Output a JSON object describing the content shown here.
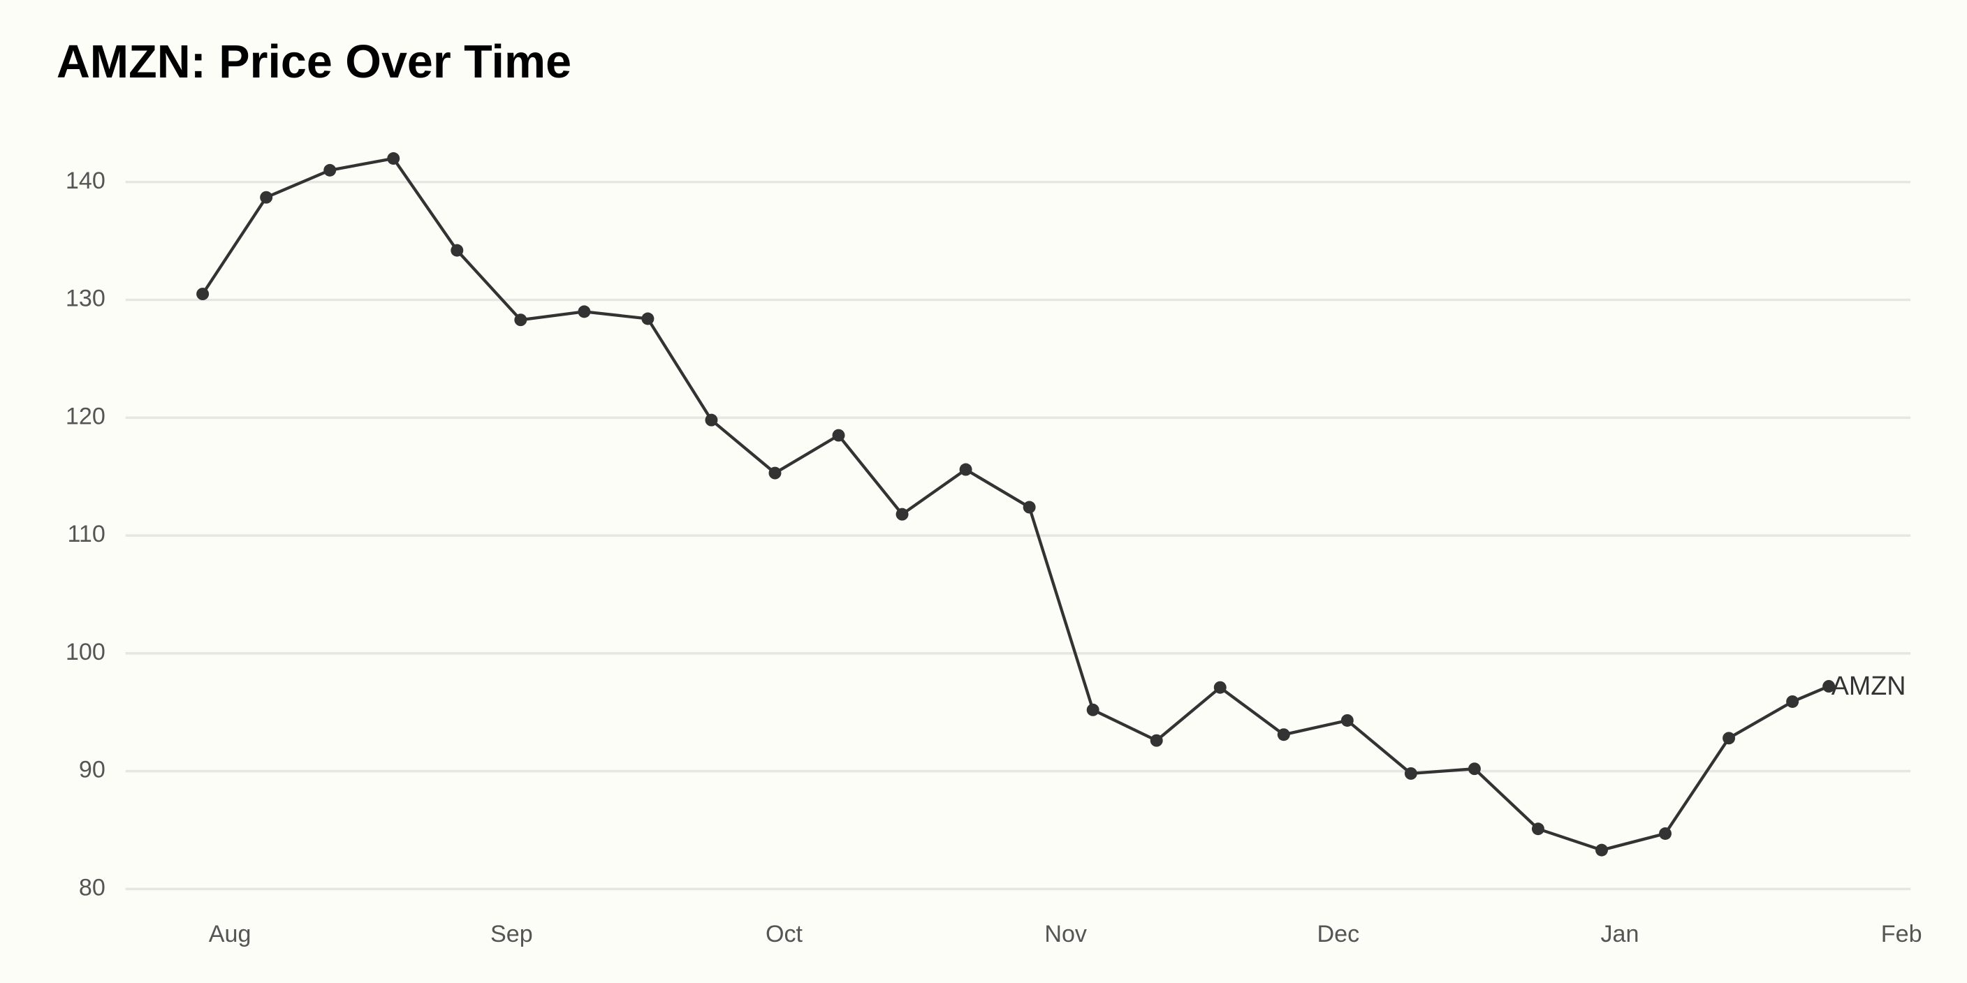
{
  "chart_data": {
    "type": "line",
    "title": "AMZN: Price Over Time",
    "x": [
      -3,
      4,
      11,
      18,
      25,
      32,
      39,
      46,
      53,
      60,
      67,
      74,
      81,
      88,
      95,
      102,
      109,
      116,
      123,
      130,
      137,
      144,
      151,
      158,
      165,
      172,
      176
    ],
    "series": [
      {
        "name": "AMZN",
        "color": "#333333",
        "values": [
          130.5,
          138.7,
          141.0,
          142.0,
          134.2,
          128.3,
          129.0,
          128.4,
          119.8,
          115.3,
          118.5,
          111.8,
          115.6,
          112.4,
          95.2,
          92.6,
          97.1,
          93.1,
          94.3,
          89.8,
          90.2,
          85.1,
          83.3,
          84.7,
          92.8,
          95.9,
          97.2
        ]
      }
    ],
    "xlim": [
      -11.5,
      185
    ],
    "xticks": [
      {
        "value": 0,
        "label": "Aug"
      },
      {
        "value": 31,
        "label": "Sep"
      },
      {
        "value": 61,
        "label": "Oct"
      },
      {
        "value": 92,
        "label": "Nov"
      },
      {
        "value": 122,
        "label": "Dec"
      },
      {
        "value": 153,
        "label": "Jan"
      },
      {
        "value": 184,
        "label": "Feb"
      }
    ],
    "ylim": [
      80,
      143
    ],
    "yticks": [
      80,
      90,
      100,
      110,
      120,
      130,
      140
    ],
    "grid": true
  }
}
